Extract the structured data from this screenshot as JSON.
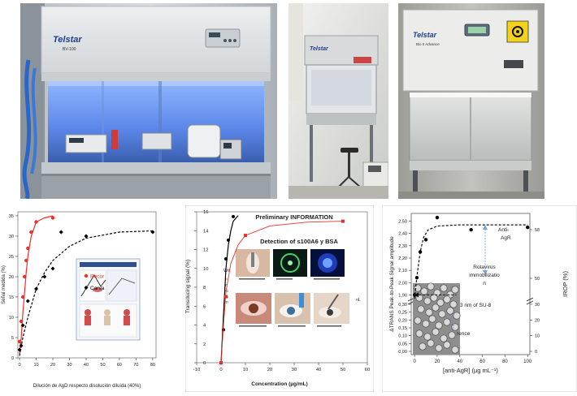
{
  "photos": {
    "cabinet1": {
      "brand": "Telstar",
      "model": "BV-100"
    },
    "cabinet2": {
      "brand": "Telstar"
    },
    "cabinet3": {
      "brand": "Telstar",
      "model": "Bio II Advance"
    }
  },
  "charts": {
    "left": {
      "ylabel": "Señal medida (%)",
      "xlabel": "Dilución de AgD respecto disolución diluida (40%)",
      "legend": [
        "Recor",
        "Carva"
      ]
    },
    "middle": {
      "title": "Preliminary INFORMATION",
      "inset_title": "Detection of s100A6 y BSA",
      "ylabel": "Transducing signal (%)",
      "xlabel": "Concentration (µg/mL)",
      "legend_stub": [
        "Wit",
        "F",
        "F",
        "Ci",
        "Ci",
        "Tr"
      ],
      "legend_suffix": "nL"
    },
    "right": {
      "ylabel_left": "ΔTRANS Peak-to-Peak Signal amplitude",
      "ylabel_right": "IROP (%)",
      "xlabel": "[anti-AgR] (µg mL⁻¹)",
      "annot_anti": "Anti-AgR",
      "annot_rota": "Rotavirus immobilizatio n",
      "annot_su8": "3 nm of SU-8",
      "annot_ref": "rence"
    }
  },
  "chart_data": [
    {
      "type": "scatter",
      "xlabel": "Dilución de AgD respecto disolución diluida (40%)",
      "ylabel": "Señal medida (%)",
      "xlim": [
        -1,
        82
      ],
      "ylim": [
        0,
        36
      ],
      "xticks": [
        0,
        10,
        20,
        30,
        40,
        50,
        60,
        70,
        80
      ],
      "yticks": [
        0,
        5,
        10,
        15,
        20,
        25,
        30,
        35
      ],
      "series": [
        {
          "name": "Recor",
          "color": "#e8312a",
          "x": [
            0,
            1,
            2,
            3,
            4,
            5,
            7,
            10,
            20
          ],
          "y": [
            4,
            9,
            15,
            20,
            24,
            27,
            31,
            33.5,
            34.5
          ],
          "fit": [
            [
              0,
              1
            ],
            [
              1,
              5
            ],
            [
              2,
              11
            ],
            [
              3,
              16
            ],
            [
              4,
              21
            ],
            [
              5,
              25
            ],
            [
              7,
              30
            ],
            [
              10,
              33.5
            ],
            [
              15,
              34.5
            ],
            [
              20,
              35
            ]
          ]
        },
        {
          "name": "Carva",
          "color": "#000000",
          "x": [
            0,
            1,
            2,
            5,
            10,
            15,
            20,
            25,
            40,
            80
          ],
          "y": [
            2,
            3,
            8,
            14,
            17,
            20,
            22,
            31,
            30,
            31
          ],
          "fit": [
            [
              0,
              0.5
            ],
            [
              2,
              5
            ],
            [
              5,
              10
            ],
            [
              10,
              17
            ],
            [
              15,
              21
            ],
            [
              20,
              24
            ],
            [
              30,
              27.5
            ],
            [
              40,
              29.5
            ],
            [
              60,
              31
            ],
            [
              80,
              31.3
            ]
          ]
        }
      ]
    },
    {
      "type": "scatter",
      "title": "Preliminary INFORMATION",
      "xlabel": "Concentration (µg/mL)",
      "ylabel": "Transducing signal (%)",
      "xlim": [
        -10,
        60
      ],
      "ylim": [
        0,
        16
      ],
      "xticks": [
        -10,
        0,
        10,
        20,
        30,
        40,
        50,
        60
      ],
      "yticks": [
        0,
        2,
        4,
        6,
        8,
        10,
        12,
        14,
        16
      ],
      "series": [
        {
          "color": "#000000",
          "x": [
            0,
            1,
            2,
            3,
            5
          ],
          "y": [
            0,
            3.5,
            11,
            13,
            15.5
          ],
          "fit": [
            [
              0,
              0
            ],
            [
              1,
              5
            ],
            [
              2,
              10
            ],
            [
              3,
              12.5
            ],
            [
              4,
              14
            ],
            [
              5,
              15
            ],
            [
              7,
              15.6
            ]
          ]
        },
        {
          "color": "#e8312a",
          "x": [
            0,
            2,
            10,
            50
          ],
          "y": [
            0,
            7,
            13.5,
            15
          ],
          "fit": [
            [
              0,
              0
            ],
            [
              1,
              4
            ],
            [
              2,
              7.5
            ],
            [
              4,
              10.5
            ],
            [
              7,
              12.5
            ],
            [
              10,
              13.5
            ],
            [
              20,
              14.5
            ],
            [
              35,
              14.9
            ],
            [
              50,
              15
            ]
          ]
        }
      ]
    },
    {
      "type": "scatter",
      "xlabel": "[anti-AgR] (µg mL⁻¹)",
      "ylabel": "ΔTRANS Peak-to-Peak Signal amplitude",
      "xlim": [
        -3,
        102
      ],
      "xticks": [
        0,
        20,
        40,
        60,
        80,
        100
      ],
      "yticks_upper": [
        1.9,
        2.0,
        2.1,
        2.2,
        2.3,
        2.4,
        2.5
      ],
      "yticks_lower": [
        0,
        0.05,
        0.1,
        0.15,
        0.2,
        0.25,
        0.3
      ],
      "yticks_right": [
        0,
        10,
        20,
        30,
        50,
        58
      ],
      "series": [
        {
          "color": "#000000",
          "x": [
            0,
            2,
            5,
            10,
            20,
            50,
            100
          ],
          "y": [
            1.9,
            2.04,
            2.25,
            2.35,
            2.53,
            2.43,
            2.45
          ],
          "fit": [
            [
              0,
              1.87
            ],
            [
              2,
              2.05
            ],
            [
              5,
              2.25
            ],
            [
              8,
              2.37
            ],
            [
              12,
              2.43
            ],
            [
              20,
              2.46
            ],
            [
              40,
              2.47
            ],
            [
              100,
              2.47
            ]
          ]
        }
      ]
    }
  ]
}
